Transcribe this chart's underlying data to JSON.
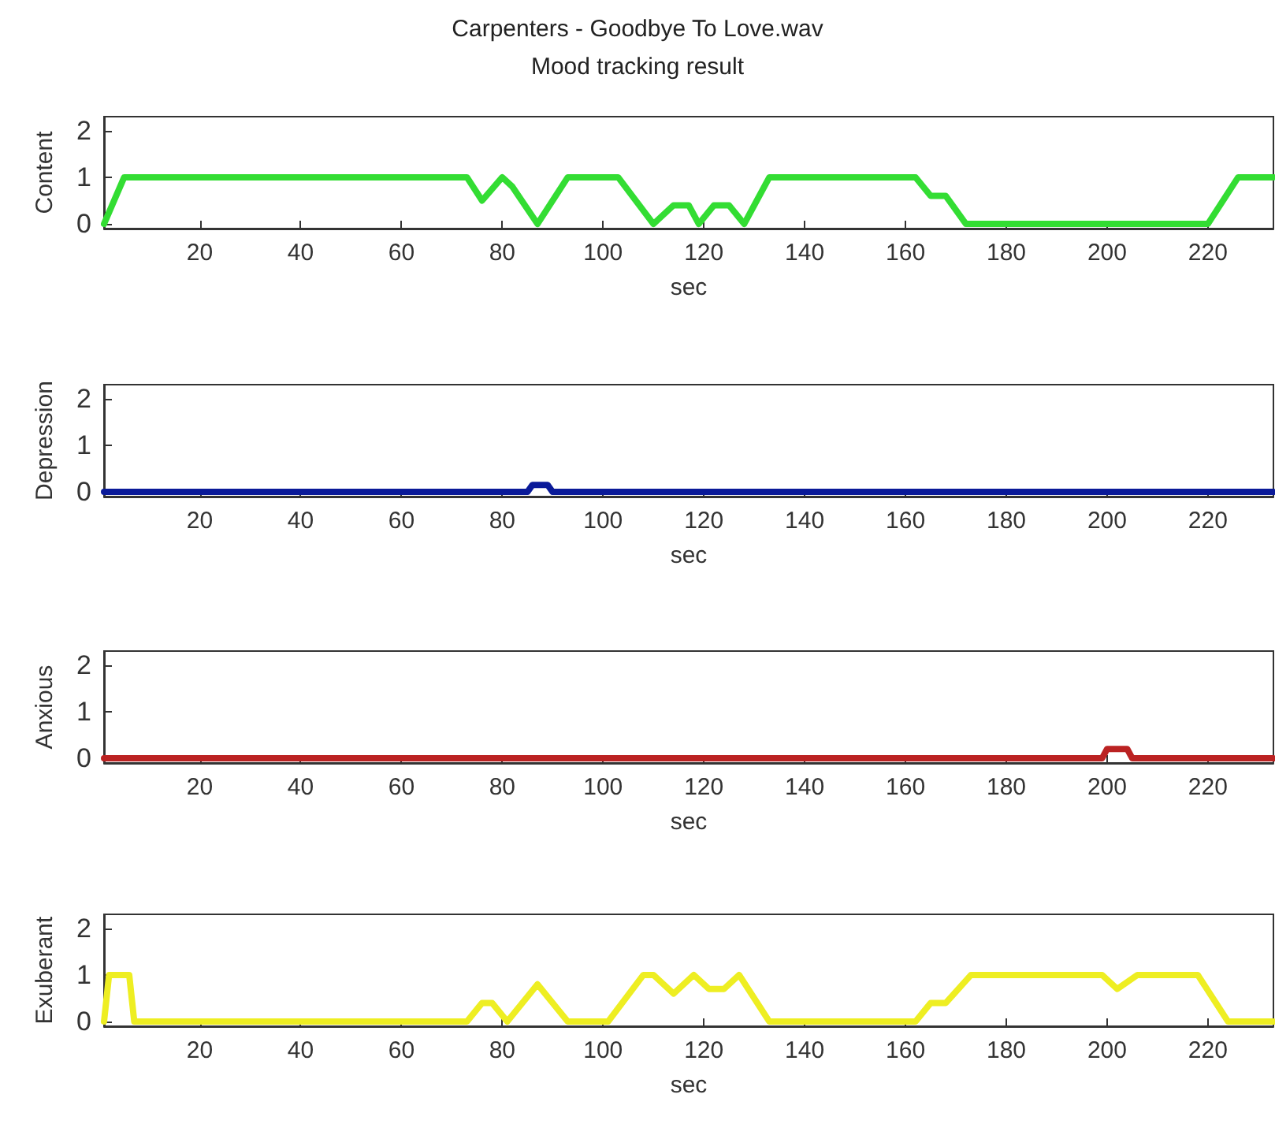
{
  "chart_data": [
    {
      "type": "line",
      "title": "Carpenters - Goodbye To Love.wav",
      "subtitle": "Mood tracking result",
      "xlabel": "sec",
      "ylabel": "Content",
      "xlim": [
        1,
        233
      ],
      "xticks": [
        20,
        40,
        60,
        80,
        100,
        120,
        140,
        160,
        180,
        200,
        220
      ],
      "ylim": [
        -0.1,
        2.3
      ],
      "yticks": [
        0,
        1,
        2
      ],
      "grid": false,
      "marker": "none",
      "line_style": "solid",
      "series": [
        {
          "color": "#33dd33",
          "x": [
            1,
            5,
            73,
            76,
            80,
            82,
            87,
            93,
            103,
            110,
            114,
            117,
            119,
            122,
            125,
            128,
            133,
            162,
            165,
            168,
            172,
            220,
            226,
            233
          ],
          "values": [
            0,
            1,
            1,
            0.5,
            1,
            0.8,
            0,
            1,
            1,
            0,
            0.4,
            0.4,
            0,
            0.4,
            0.4,
            0,
            1,
            1,
            0.6,
            0.6,
            0,
            0,
            1,
            1
          ]
        }
      ]
    },
    {
      "type": "line",
      "xlabel": "sec",
      "ylabel": "Depression",
      "xlim": [
        1,
        233
      ],
      "xticks": [
        20,
        40,
        60,
        80,
        100,
        120,
        140,
        160,
        180,
        200,
        220
      ],
      "ylim": [
        -0.1,
        2.3
      ],
      "yticks": [
        0,
        1,
        2
      ],
      "grid": false,
      "marker": "none",
      "line_style": "solid",
      "series": [
        {
          "color": "#0a1a99",
          "x": [
            1,
            85,
            86,
            89,
            90,
            233
          ],
          "values": [
            0,
            0,
            0.15,
            0.15,
            0,
            0
          ]
        }
      ]
    },
    {
      "type": "line",
      "xlabel": "sec",
      "ylabel": "Anxious",
      "xlim": [
        1,
        233
      ],
      "xticks": [
        20,
        40,
        60,
        80,
        100,
        120,
        140,
        160,
        180,
        200,
        220
      ],
      "ylim": [
        -0.1,
        2.3
      ],
      "yticks": [
        0,
        1,
        2
      ],
      "grid": false,
      "marker": "none",
      "line_style": "solid",
      "series": [
        {
          "color": "#bb2222",
          "x": [
            1,
            199,
            200,
            204,
            205,
            233
          ],
          "values": [
            0,
            0,
            0.2,
            0.2,
            0,
            0
          ]
        }
      ]
    },
    {
      "type": "line",
      "xlabel": "sec",
      "ylabel": "Exuberant",
      "xlim": [
        1,
        233
      ],
      "xticks": [
        20,
        40,
        60,
        80,
        100,
        120,
        140,
        160,
        180,
        200,
        220
      ],
      "ylim": [
        -0.1,
        2.3
      ],
      "yticks": [
        0,
        1,
        2
      ],
      "grid": false,
      "marker": "none",
      "line_style": "solid",
      "series": [
        {
          "color": "#eeee22",
          "x": [
            1,
            2,
            6,
            7,
            73,
            76,
            78,
            81,
            87,
            93,
            101,
            108,
            110,
            114,
            118,
            121,
            124,
            127,
            133,
            162,
            165,
            168,
            173,
            199,
            202,
            206,
            218,
            224,
            233
          ],
          "values": [
            0,
            1,
            1,
            0,
            0,
            0.4,
            0.4,
            0,
            0.8,
            0,
            0,
            1,
            1,
            0.6,
            1,
            0.7,
            0.7,
            1,
            0,
            0,
            0.4,
            0.4,
            1,
            1,
            0.7,
            1,
            1,
            0,
            0
          ]
        }
      ]
    }
  ]
}
